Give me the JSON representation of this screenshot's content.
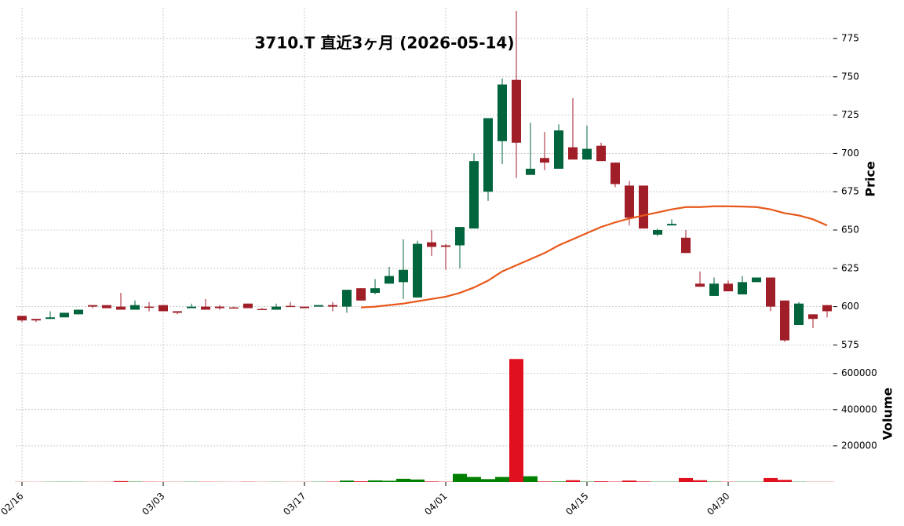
{
  "chart_data": {
    "type": "candlestick",
    "title": "3710.T  直近3ヶ月 (2026-05-14)",
    "categories": [
      "02/16",
      null,
      null,
      null,
      null,
      null,
      null,
      null,
      null,
      null,
      "03/03",
      null,
      null,
      null,
      null,
      null,
      null,
      null,
      null,
      null,
      "03/17",
      null,
      null,
      null,
      null,
      null,
      null,
      null,
      null,
      null,
      "04/01",
      null,
      null,
      null,
      null,
      null,
      null,
      null,
      null,
      null,
      "04/15",
      null,
      null,
      null,
      null,
      null,
      null,
      null,
      null,
      null,
      "04/30",
      null,
      null,
      null,
      null,
      null,
      null,
      null
    ],
    "open": [
      594,
      592,
      592,
      593,
      595,
      601,
      601,
      600,
      598,
      600,
      601,
      597,
      599,
      600,
      600,
      599.5,
      602,
      598.5,
      598,
      600.5,
      600,
      600,
      601,
      600,
      612,
      609,
      615,
      616,
      606,
      642,
      640,
      640,
      651,
      675,
      708,
      748,
      686,
      697,
      690,
      704,
      696,
      705,
      694,
      679,
      679,
      647,
      653,
      645,
      615,
      607,
      615,
      608,
      616,
      619,
      604,
      588,
      595,
      601
    ],
    "high": [
      594,
      592,
      597,
      596,
      598,
      601,
      601,
      609,
      604,
      603,
      601,
      597,
      602,
      605,
      601,
      600,
      602,
      599,
      602,
      603,
      600,
      601,
      603,
      611,
      612,
      618,
      626,
      644,
      643,
      650,
      641,
      652,
      700,
      723,
      749,
      793,
      720,
      714,
      719,
      736,
      718,
      707,
      694,
      682,
      679,
      651,
      657,
      650,
      623,
      619,
      617,
      620,
      619,
      619,
      604,
      603,
      595,
      601
    ],
    "low": [
      590,
      590,
      592,
      593,
      595,
      599,
      599,
      598,
      598,
      597,
      597,
      595,
      599,
      598,
      598,
      599,
      599,
      598,
      598,
      600,
      599,
      600,
      597,
      596,
      604,
      608,
      615,
      605,
      606,
      633,
      624,
      625,
      651,
      669,
      693,
      684,
      686,
      689,
      690,
      696,
      696,
      695,
      678,
      653,
      651,
      646,
      653,
      635,
      613,
      607,
      610,
      608,
      616,
      597,
      577,
      588,
      586,
      593
    ],
    "close": [
      591,
      591,
      593,
      596,
      598,
      600,
      599,
      598,
      601,
      599.5,
      597,
      596,
      600,
      598,
      599,
      599,
      599,
      598,
      600,
      600,
      599,
      601,
      600,
      611,
      604,
      612,
      620,
      624,
      641,
      639,
      639,
      652,
      695,
      723,
      745,
      707,
      690,
      694,
      715,
      696,
      703,
      695,
      680,
      658,
      651,
      650,
      654,
      635,
      613,
      615,
      610,
      616,
      619,
      600,
      578,
      602,
      592,
      597
    ],
    "up_color": "#00643c",
    "down_color": "#a01e28",
    "moving_average": {
      "color": "#e8581a",
      "values": [
        null,
        null,
        null,
        null,
        null,
        null,
        null,
        null,
        null,
        null,
        null,
        null,
        null,
        null,
        null,
        null,
        null,
        null,
        null,
        null,
        null,
        null,
        null,
        null,
        599.5,
        600,
        601,
        602,
        603.5,
        605,
        606.5,
        609,
        612.5,
        617,
        623,
        627,
        631,
        635,
        640,
        644,
        648,
        652,
        655,
        657.5,
        659.5,
        661.5,
        663.5,
        665,
        665,
        665.5,
        665.5,
        665.3,
        665,
        663.5,
        661,
        659.5,
        657,
        653
      ]
    },
    "ylim": [
      567,
      795
    ],
    "yticks": [
      575,
      600,
      625,
      650,
      675,
      700,
      725,
      750,
      775
    ],
    "ylabel": "Price",
    "grid": true,
    "volume": {
      "values": [
        1000,
        800,
        1200,
        1500,
        1300,
        900,
        1000,
        5000,
        2000,
        1500,
        1200,
        1000,
        1500,
        1200,
        1000,
        800,
        1500,
        900,
        1200,
        900,
        1000,
        1500,
        2000,
        8000,
        4000,
        9000,
        7000,
        18000,
        14000,
        3000,
        1500,
        45000,
        28000,
        16000,
        28000,
        680000,
        32000,
        3000,
        3000,
        10000,
        2000,
        4000,
        2000,
        8000,
        3000,
        1500,
        1500,
        22000,
        10000,
        2000,
        1500,
        1500,
        1500,
        22000,
        12000,
        1500,
        1000,
        1000
      ],
      "up_color": "#007f00",
      "down_color": "#e0101e",
      "ylim": [
        0,
        690000
      ],
      "yticks": [
        200000,
        400000,
        600000
      ],
      "ylabel": "Volume"
    }
  }
}
